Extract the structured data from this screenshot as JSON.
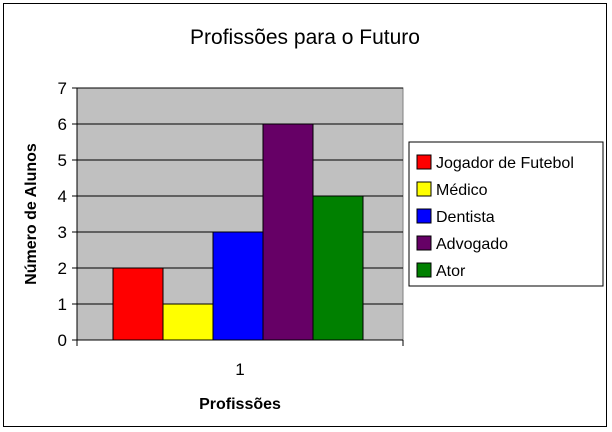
{
  "chart_data": {
    "type": "bar",
    "title": "Profissões para o Futuro",
    "xlabel": "Profissões",
    "ylabel": "Número de Alunos",
    "categories": [
      "1"
    ],
    "series": [
      {
        "name": "Jogador de Futebol",
        "values": [
          2
        ],
        "color": "#ff0000"
      },
      {
        "name": "Médico",
        "values": [
          1
        ],
        "color": "#ffff00"
      },
      {
        "name": "Dentista",
        "values": [
          3
        ],
        "color": "#0000ff"
      },
      {
        "name": "Advogado",
        "values": [
          6
        ],
        "color": "#660066"
      },
      {
        "name": "Ator",
        "values": [
          4
        ],
        "color": "#008000"
      }
    ],
    "ylim": [
      0,
      7
    ],
    "yticks": [
      "0",
      "1",
      "2",
      "3",
      "4",
      "5",
      "6",
      "7"
    ],
    "grid": true,
    "legend": "right",
    "plot_background": "#c0c0c0"
  }
}
